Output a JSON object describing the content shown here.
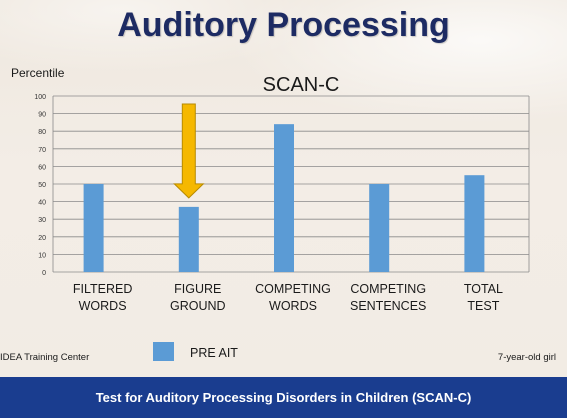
{
  "slide": {
    "title": "Auditory Processing",
    "left_note": "IDEA Training Center",
    "right_note": "7-year-old girl",
    "footer": "Test for Auditory Processing Disorders in Children (SCAN-C)"
  },
  "colors": {
    "bar": "#5b9bd5",
    "arrow": "#f5b800",
    "footer_bg": "#1a3d8f",
    "title": "#1d2b63"
  },
  "chart_data": {
    "type": "bar",
    "title": "SCAN-C",
    "ylabel": "Percentile",
    "xlabel": "",
    "ylim": [
      0,
      100
    ],
    "yticks": [
      0,
      10,
      20,
      30,
      40,
      50,
      60,
      70,
      80,
      90,
      100
    ],
    "grid": true,
    "categories": [
      [
        "FILTERED",
        "WORDS"
      ],
      [
        "FIGURE",
        "GROUND"
      ],
      [
        "COMPETING",
        "WORDS"
      ],
      [
        "COMPETING",
        "SENTENCES"
      ],
      [
        "TOTAL",
        "TEST"
      ]
    ],
    "series": [
      {
        "name": "PRE AIT",
        "values": [
          50,
          37,
          84,
          50,
          55
        ]
      }
    ],
    "legend": "bottom-left",
    "annotations": [
      {
        "type": "arrow",
        "category_index": 1,
        "color": "#f5b800"
      }
    ]
  }
}
